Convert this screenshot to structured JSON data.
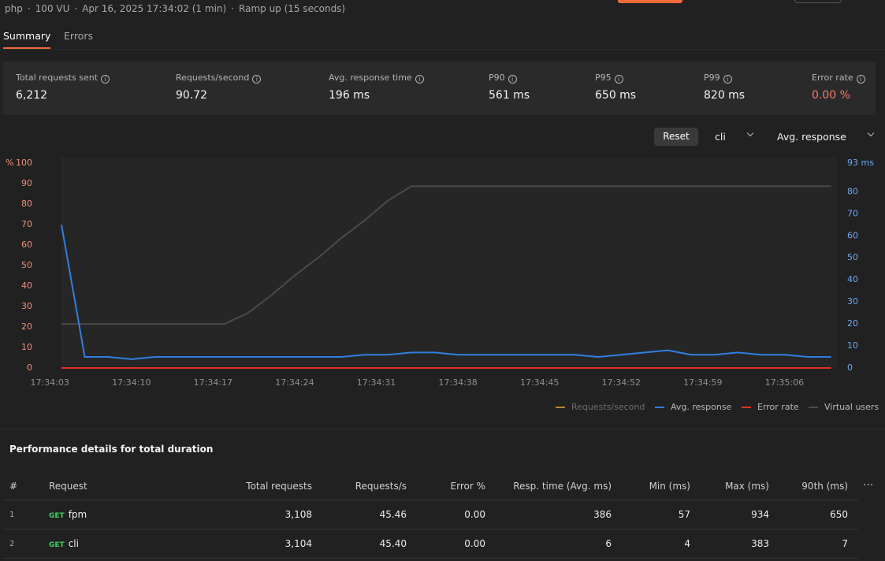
{
  "header": {
    "collection": "php",
    "vu": "100 VU",
    "time": "Apr 16, 2025 17:34:02 (1 min)",
    "ramp": "Ramp up (15 seconds)"
  },
  "tabs": [
    "Summary",
    "Errors"
  ],
  "stats": [
    {
      "label": "Total requests sent",
      "value": "6,212"
    },
    {
      "label": "Requests/second",
      "value": "90.72"
    },
    {
      "label": "Avg. response time",
      "value": "196 ms"
    },
    {
      "label": "P90",
      "value": "561 ms"
    },
    {
      "label": "P95",
      "value": "650 ms"
    },
    {
      "label": "P99",
      "value": "820 ms"
    },
    {
      "label": "Error rate",
      "value": "0.00 %"
    }
  ],
  "controls": {
    "reset": "Reset",
    "request": "cli",
    "metric": "Avg. response"
  },
  "chart_data": {
    "type": "line",
    "ylabel": "%",
    "xlim": [
      -1.5,
      67.5
    ],
    "xticks": [
      {
        "value": 0,
        "label": "17:34:03"
      },
      {
        "value": 7,
        "label": "17:34:10"
      },
      {
        "value": 14,
        "label": "17:34:17"
      },
      {
        "value": 21,
        "label": "17:34:24"
      },
      {
        "value": 28,
        "label": "17:34:31"
      },
      {
        "value": 35,
        "label": "17:34:38"
      },
      {
        "value": 42,
        "label": "17:34:45"
      },
      {
        "value": 49,
        "label": "17:34:52"
      },
      {
        "value": 56,
        "label": "17:34:59"
      },
      {
        "value": 63,
        "label": "17:35:06"
      }
    ],
    "ylim": [
      0,
      100
    ],
    "yticks": [
      0,
      10,
      20,
      30,
      40,
      50,
      60,
      70,
      80,
      90,
      100
    ],
    "y2lim": [
      0,
      93
    ],
    "y2ticks": [
      0,
      10,
      20,
      30,
      40,
      50,
      60,
      70,
      80,
      {
        "value": 93,
        "label": "93 ms"
      }
    ],
    "series": [
      {
        "name": "Requests/second",
        "color": "#b8863b",
        "hidden": true,
        "x": [],
        "values": []
      },
      {
        "name": "Avg. response",
        "color": "#2f7fe0",
        "axis": "y2",
        "x": [
          1,
          3,
          5,
          7,
          9,
          11,
          13,
          15,
          17,
          19,
          21,
          23,
          25,
          27,
          29,
          31,
          33,
          35,
          37,
          39,
          41,
          43,
          45,
          47,
          49,
          51,
          53,
          55,
          57,
          59,
          61,
          63,
          65,
          67
        ],
        "values": [
          65,
          5,
          5,
          4,
          5,
          5,
          5,
          5,
          5,
          5,
          5,
          5,
          5,
          6,
          6,
          7,
          7,
          6,
          6,
          6,
          6,
          6,
          6,
          5,
          6,
          7,
          8,
          6,
          6,
          7,
          6,
          6,
          5,
          5
        ]
      },
      {
        "name": "Error rate",
        "color": "#e0321f",
        "x": [
          1,
          67
        ],
        "values": [
          0,
          0
        ]
      },
      {
        "name": "Virtual users",
        "color": "#4a4a4a",
        "axis": "y2",
        "x": [
          1,
          15,
          17,
          19,
          21,
          23,
          25,
          27,
          29,
          31,
          67
        ],
        "values": [
          20,
          20,
          25,
          33,
          42,
          50,
          59,
          67,
          76,
          82.5,
          82.5
        ]
      }
    ]
  },
  "table": {
    "title": "Performance details for total duration",
    "columns": [
      "#",
      "Request",
      "Total requests",
      "Requests/s",
      "Error %",
      "Resp. time (Avg. ms)",
      "Min (ms)",
      "Max (ms)",
      "90th (ms)"
    ],
    "rows": [
      {
        "index": "1",
        "method": "GET",
        "name": "fpm",
        "cells": [
          "3,108",
          "45.46",
          "0.00",
          "386",
          "57",
          "934",
          "650"
        ]
      },
      {
        "index": "2",
        "method": "GET",
        "name": "cli",
        "cells": [
          "3,104",
          "45.40",
          "0.00",
          "6",
          "4",
          "383",
          "7"
        ]
      }
    ]
  }
}
